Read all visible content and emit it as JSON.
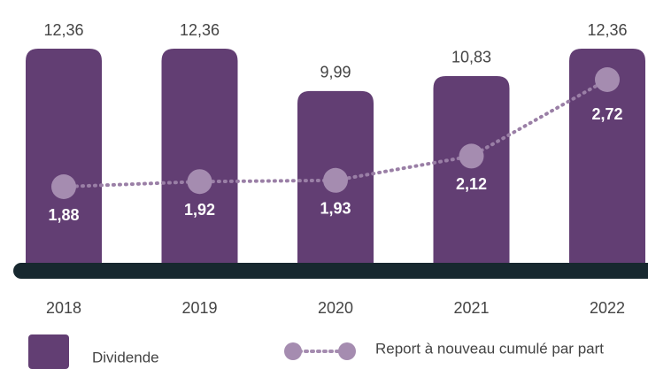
{
  "chart_data": {
    "type": "bar",
    "categories": [
      "2018",
      "2019",
      "2020",
      "2021",
      "2022"
    ],
    "series": [
      {
        "name": "Dividende",
        "type": "bar",
        "color": "#623e73",
        "values": [
          12.36,
          12.36,
          9.99,
          10.83,
          12.36
        ],
        "value_labels": [
          "12,36",
          "12,36",
          "9,99",
          "10,83",
          "12,36"
        ]
      },
      {
        "name": "Report à nouveau cumulé par part",
        "type": "line",
        "axis": "y2",
        "color": "#a58cb0",
        "values": [
          1.88,
          1.92,
          1.93,
          2.12,
          2.72
        ],
        "value_labels": [
          "1,88",
          "1,92",
          "1,93",
          "2,12",
          "2,72"
        ]
      }
    ]
  }
}
